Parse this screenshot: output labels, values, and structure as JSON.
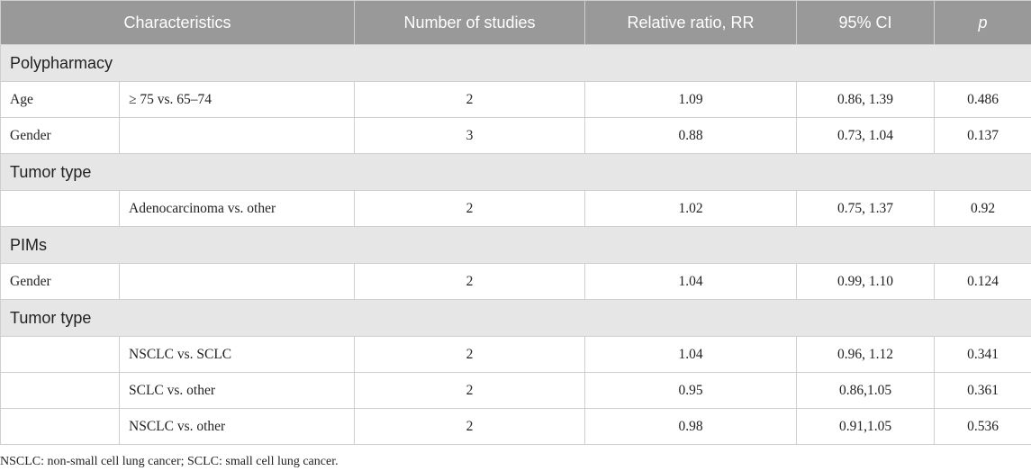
{
  "headers": {
    "characteristics": "Characteristics",
    "studies": "Number of studies",
    "rr": "Relative ratio, RR",
    "ci": "95% CI",
    "p": "p"
  },
  "sections": {
    "polypharmacy": "Polypharmacy",
    "tumor_type_1": "Tumor type",
    "pims": "PIMs",
    "tumor_type_2": "Tumor type"
  },
  "rows": [
    {
      "char": "Age",
      "sub": "≥ 75 vs. 65–74",
      "studies": "2",
      "rr": "1.09",
      "ci": "0.86, 1.39",
      "p": "0.486"
    },
    {
      "char": "Gender",
      "sub": "",
      "studies": "3",
      "rr": "0.88",
      "ci": "0.73, 1.04",
      "p": "0.137"
    },
    {
      "char": "",
      "sub": "Adenocarcinoma vs. other",
      "studies": "2",
      "rr": "1.02",
      "ci": "0.75, 1.37",
      "p": "0.92"
    },
    {
      "char": "Gender",
      "sub": "",
      "studies": "2",
      "rr": "1.04",
      "ci": "0.99, 1.10",
      "p": "0.124"
    },
    {
      "char": "",
      "sub": "NSCLC vs. SCLC",
      "studies": "2",
      "rr": "1.04",
      "ci": "0.96, 1.12",
      "p": "0.341"
    },
    {
      "char": "",
      "sub": "SCLC vs. other",
      "studies": "2",
      "rr": "0.95",
      "ci": "0.86,1.05",
      "p": "0.361"
    },
    {
      "char": "",
      "sub": "NSCLC vs. other",
      "studies": "2",
      "rr": "0.98",
      "ci": "0.91,1.05",
      "p": "0.536"
    }
  ],
  "footnote": "NSCLC: non-small cell lung cancer; SCLC: small cell lung cancer."
}
